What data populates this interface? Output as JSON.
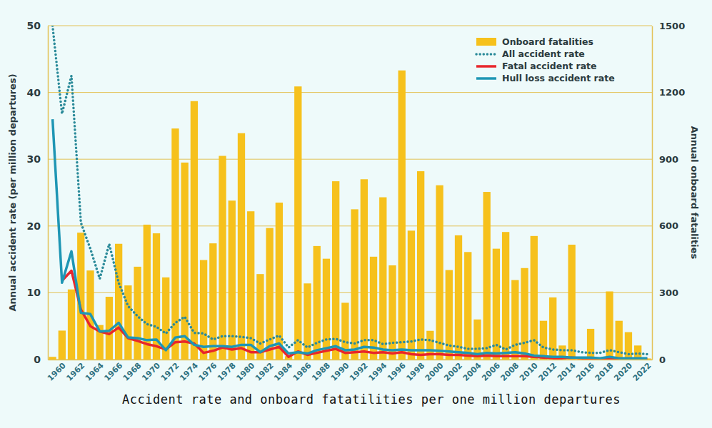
{
  "chart_data": {
    "type": "bar",
    "x_label": "Accident rate and onboard fatatilities per one million departures",
    "y_label": "Annual accident rate (per million departures)",
    "y2_label": "Annual onboard fatalities",
    "categories": [
      null,
      "1960",
      null,
      "1962",
      null,
      "1964",
      null,
      "1966",
      null,
      "1968",
      null,
      "1970",
      null,
      "1972",
      null,
      "1974",
      null,
      "1976",
      null,
      "1978",
      null,
      "1980",
      null,
      "1982",
      null,
      "1984",
      null,
      "1986",
      null,
      "1988",
      null,
      "1990",
      null,
      "1992",
      null,
      "1994",
      null,
      "1996",
      null,
      "1998",
      null,
      "2000",
      null,
      "2002",
      null,
      "2004",
      null,
      "2006",
      null,
      "2008",
      null,
      "2010",
      null,
      "2012",
      null,
      "2014",
      null,
      "2016",
      null,
      "2018",
      null,
      "2020",
      null,
      "2022"
    ],
    "ylim": [
      0,
      50
    ],
    "yticks": [
      0,
      10,
      20,
      30,
      40,
      50
    ],
    "y2lim": [
      0,
      1500
    ],
    "y2ticks": [
      0,
      300,
      600,
      900,
      1200,
      1500
    ],
    "grid": true,
    "legend": "top-right",
    "series": [
      {
        "name": "Onboard fatalities",
        "type": "bar",
        "axis": "y2",
        "color": "#f6c11c",
        "values": [
          12,
          130,
          315,
          570,
          400,
          155,
          282,
          520,
          333,
          417,
          606,
          567,
          369,
          1038,
          885,
          1161,
          447,
          522,
          915,
          714,
          1017,
          666,
          384,
          591,
          705,
          15,
          1227,
          342,
          510,
          453,
          801,
          255,
          675,
          810,
          462,
          729,
          423,
          1299,
          579,
          846,
          129,
          783,
          402,
          558,
          483,
          180,
          753,
          498,
          573,
          357,
          411,
          555,
          174,
          279,
          63,
          516,
          5,
          138,
          2,
          306,
          174,
          123,
          63,
          5
        ]
      },
      {
        "name": "All accident rate",
        "type": "line",
        "color": "#2a8a99",
        "line_style": "dotted",
        "values": [
          50,
          36.8,
          42.5,
          20.5,
          16.6,
          12.1,
          17.3,
          11.5,
          8,
          6.5,
          5.3,
          4.9,
          3.9,
          5.5,
          6.4,
          4,
          3.9,
          3,
          3.5,
          3.5,
          3.4,
          3.2,
          2.4,
          3,
          3.6,
          1.8,
          2.9,
          1.8,
          2.5,
          3,
          3.1,
          2.6,
          2.4,
          2.9,
          2.9,
          2.3,
          2.5,
          2.6,
          2.7,
          3,
          2.9,
          2.5,
          2.1,
          1.9,
          1.6,
          1.6,
          1.7,
          2.2,
          1.5,
          2.2,
          2.5,
          2.9,
          1.8,
          1.5,
          1.4,
          1.4,
          1.1,
          1,
          1,
          1.4,
          1.1,
          0.8,
          0.9,
          0.8
        ]
      },
      {
        "name": "Fatal accident rate",
        "type": "line",
        "color": "#e8262b",
        "line_style": "solid",
        "values": [
          null,
          11.8,
          13.3,
          7.5,
          5,
          4.2,
          3.8,
          4.8,
          3.2,
          2.8,
          2.3,
          2,
          1.5,
          2.6,
          2.7,
          2.4,
          1,
          1.3,
          1.8,
          1.5,
          1.7,
          1.1,
          1.1,
          1.5,
          1.9,
          0.4,
          1.2,
          0.7,
          1,
          1.3,
          1.6,
          1,
          1.1,
          1.2,
          1,
          1.1,
          0.9,
          1.1,
          0.8,
          0.7,
          0.8,
          0.8,
          0.7,
          0.7,
          0.6,
          0.5,
          0.6,
          0.5,
          0.5,
          0.5,
          0.5,
          0.4,
          0.3,
          0.2,
          0.2,
          0.3,
          0.2,
          0.1,
          0.1,
          0.2,
          0.1,
          0.1,
          0.1,
          0.1
        ]
      },
      {
        "name": "Hull loss accident rate",
        "type": "line",
        "color": "#1e96b4",
        "line_style": "solid",
        "values": [
          36,
          11.5,
          16.2,
          7,
          6.8,
          4.2,
          4.3,
          5.5,
          3.3,
          3.2,
          2.9,
          3,
          1.4,
          3.3,
          3.5,
          2.2,
          1.9,
          2,
          2,
          1.9,
          2.2,
          2.2,
          1.1,
          2,
          2.4,
          0.9,
          1.1,
          0.9,
          1.4,
          1.7,
          2,
          1.4,
          1.5,
          1.9,
          1.8,
          1.5,
          1.4,
          1.5,
          1.4,
          1.4,
          1.4,
          1.3,
          1.2,
          1.1,
          1,
          0.8,
          1,
          0.9,
          1,
          1.1,
          0.9,
          0.6,
          0.5,
          0.4,
          0.4,
          0.3,
          0.3,
          0.3,
          0.2,
          0.4,
          0.2,
          0.2,
          0.2,
          0.2
        ]
      }
    ]
  }
}
